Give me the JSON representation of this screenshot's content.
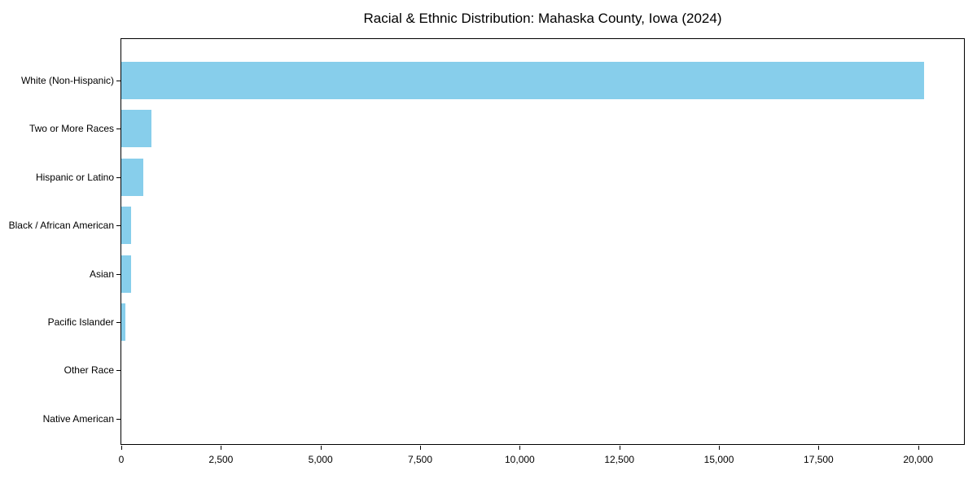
{
  "chart_data": {
    "type": "bar",
    "orientation": "horizontal",
    "title": "Racial & Ethnic Distribution: Mahaska County, Iowa (2024)",
    "categories": [
      "White (Non-Hispanic)",
      "Two or More Races",
      "Hispanic or Latino",
      "Black / African American",
      "Asian",
      "Pacific Islander",
      "Other Race",
      "Native American"
    ],
    "values": [
      20150,
      750,
      545,
      250,
      235,
      100,
      0,
      0
    ],
    "bar_color": "#87CEEB",
    "xlabel": "",
    "ylabel": "",
    "xlim": [
      0,
      21150
    ],
    "xticks": [
      0,
      2500,
      5000,
      7500,
      10000,
      12500,
      15000,
      17500,
      20000
    ],
    "xtick_labels": [
      "0",
      "2,500",
      "5,000",
      "7,500",
      "10,000",
      "12,500",
      "15,000",
      "17,500",
      "20,000"
    ],
    "grid": false,
    "legend": "none",
    "spines": "full-box"
  }
}
